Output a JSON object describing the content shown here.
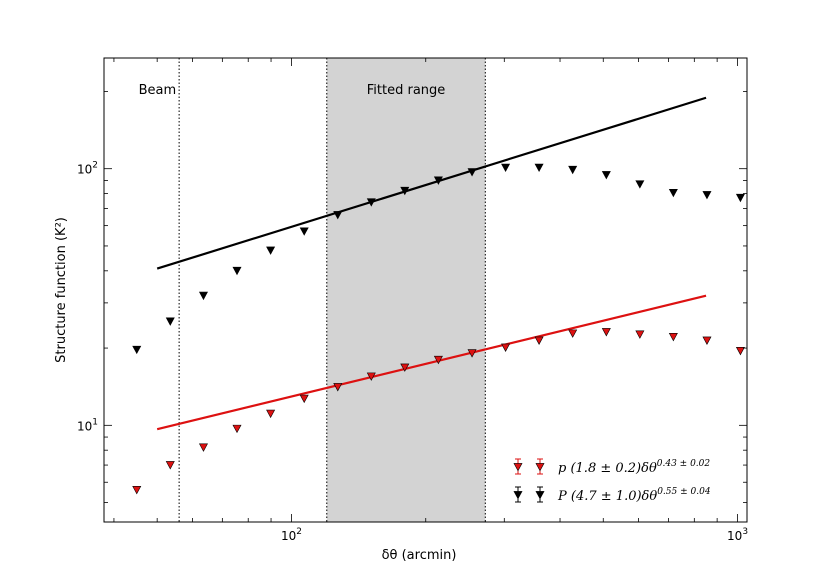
{
  "chart_data": {
    "type": "scatter",
    "xscale": "log",
    "yscale": "log",
    "xlim": [
      38,
      1050
    ],
    "ylim": [
      4.2,
      270
    ],
    "xlabel": "δθ (arcmin)",
    "ylabel": "Structure function (K²)",
    "xticks": [
      {
        "value": 100,
        "base": "10",
        "exp": "2"
      },
      {
        "value": 1000,
        "base": "10",
        "exp": "3"
      }
    ],
    "yticks": [
      {
        "value": 10,
        "base": "10",
        "exp": "1"
      },
      {
        "value": 100,
        "base": "10",
        "exp": "2"
      }
    ],
    "fitted_range": {
      "x0": 120,
      "x1": 272,
      "label": "Fitted range",
      "color": "#d3d3d3"
    },
    "beam": {
      "x": 56,
      "label": "Beam"
    },
    "series": [
      {
        "key": "p",
        "color": "#dd1111",
        "legend_symbol": "p",
        "legend_text": "(1.8 ± 0.2)δθ",
        "legend_exp": "0.43 ± 0.02",
        "x": [
          45,
          53.5,
          63.5,
          75.5,
          89.8,
          106.8,
          127,
          151,
          179.5,
          213.5,
          254,
          302,
          359,
          427,
          508,
          604,
          718,
          854,
          1015
        ],
        "y": [
          5.6,
          7.0,
          8.2,
          9.7,
          11.1,
          12.7,
          14.1,
          15.5,
          16.8,
          18.0,
          19.1,
          20.1,
          21.4,
          22.8,
          23.1,
          22.6,
          22.1,
          21.4,
          19.5
        ],
        "fit": {
          "x": [
            50,
            850
          ],
          "y": [
            9.66,
            32.0
          ]
        }
      },
      {
        "key": "P",
        "color": "#000000",
        "legend_symbol": "P",
        "legend_text": "(4.7 ± 1.0)δθ",
        "legend_exp": "0.55 ± 0.04",
        "x": [
          45,
          53.5,
          63.5,
          75.5,
          89.8,
          106.8,
          127,
          151,
          179.5,
          213.5,
          254,
          302,
          359,
          427,
          508,
          604,
          718,
          854,
          1015
        ],
        "y": [
          19.7,
          25.4,
          32.0,
          40.0,
          48.0,
          57.0,
          66.0,
          74.0,
          82.0,
          90.0,
          97.0,
          101.0,
          101.0,
          99.0,
          94.5,
          87.0,
          80.5,
          79.0,
          77.0
        ],
        "fit": {
          "x": [
            50,
            850
          ],
          "y": [
            40.8,
            189.0
          ]
        }
      }
    ],
    "legend": {
      "placement": "lower-right"
    },
    "grid": false
  }
}
